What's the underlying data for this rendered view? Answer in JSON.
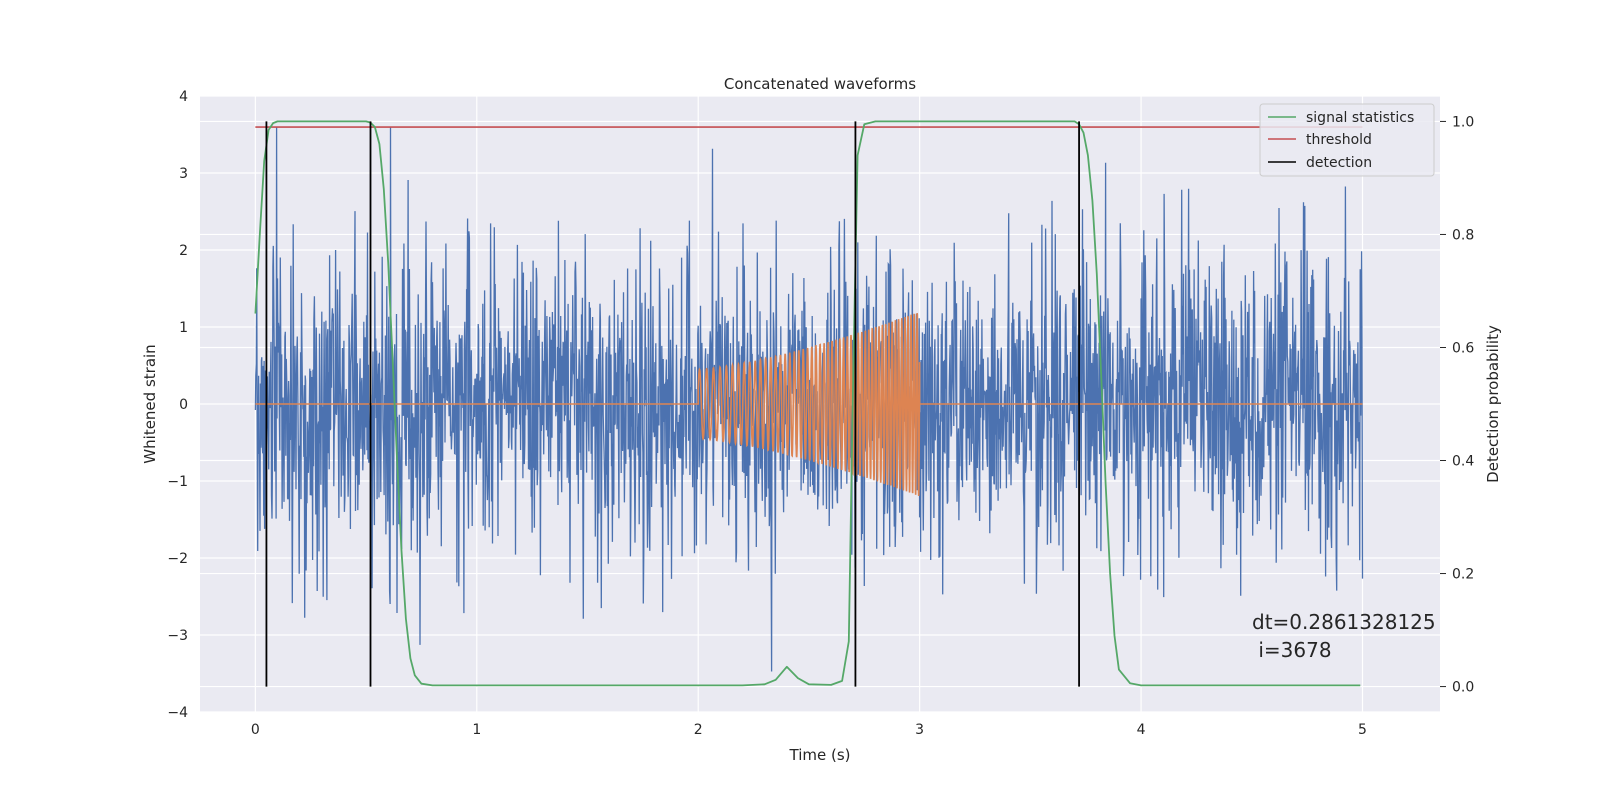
{
  "chart_data": {
    "type": "line",
    "title": "Concatenated waveforms",
    "xlabel": "Time (s)",
    "ylabel_left": "Whitened strain",
    "ylabel_right": "Detection probability",
    "xlim": [
      -0.25,
      5.35
    ],
    "ylim_left": [
      -4,
      4
    ],
    "ylim_right": [
      -0.045,
      1.045
    ],
    "x_ticks": [
      0,
      1,
      2,
      3,
      4,
      5
    ],
    "y_ticks_left": [
      -4,
      -3,
      -2,
      -1,
      0,
      1,
      2,
      3,
      4
    ],
    "y_ticks_right": [
      0.0,
      0.2,
      0.4,
      0.6,
      0.8,
      1.0
    ],
    "x_tick_labels": [
      "0",
      "1",
      "2",
      "3",
      "4",
      "5"
    ],
    "y_tick_labels_left": [
      "−4",
      "−3",
      "−2",
      "−1",
      "0",
      "1",
      "2",
      "3",
      "4"
    ],
    "y_tick_labels_right": [
      "0.0",
      "0.2",
      "0.4",
      "0.6",
      "0.8",
      "1.0"
    ],
    "grid": true,
    "legend_position": "top-right",
    "colors": {
      "strain": "#4c72b0",
      "template": "#dd8452",
      "signal_statistics": "#55a868",
      "threshold": "#c44e52",
      "detection": "#000000",
      "axes_bg": "#eaeaf2",
      "grid": "#ffffff"
    },
    "series": [
      {
        "name": "",
        "axis": "left",
        "kind": "noise",
        "x_range": [
          0,
          5
        ],
        "std": 0.75,
        "peak_range": [
          -3.7,
          3.6
        ]
      },
      {
        "name": "",
        "axis": "left",
        "kind": "chirp",
        "x_range": [
          0,
          5
        ],
        "chirp_start": 2.0,
        "chirp_end": 3.0,
        "amplitude_start": 0.45,
        "amplitude_end": 1.2
      },
      {
        "name": "signal statistics",
        "axis": "right",
        "x": [
          0,
          0.02,
          0.04,
          0.06,
          0.08,
          0.1,
          0.15,
          0.2,
          0.3,
          0.4,
          0.5,
          0.52,
          0.54,
          0.56,
          0.58,
          0.6,
          0.62,
          0.64,
          0.66,
          0.68,
          0.7,
          0.72,
          0.75,
          0.8,
          1.0,
          1.5,
          2.0,
          2.2,
          2.3,
          2.35,
          2.4,
          2.45,
          2.5,
          2.6,
          2.65,
          2.68,
          2.7,
          2.72,
          2.75,
          2.8,
          3.0,
          3.5,
          3.7,
          3.72,
          3.74,
          3.76,
          3.78,
          3.8,
          3.82,
          3.84,
          3.86,
          3.88,
          3.9,
          3.95,
          4.0,
          4.5,
          4.99
        ],
        "y": [
          0.66,
          0.8,
          0.93,
          0.985,
          0.997,
          1.0,
          1.0,
          1.0,
          1.0,
          1.0,
          1.0,
          0.998,
          0.99,
          0.96,
          0.88,
          0.75,
          0.58,
          0.4,
          0.24,
          0.12,
          0.05,
          0.02,
          0.005,
          0.002,
          0.002,
          0.002,
          0.002,
          0.002,
          0.004,
          0.012,
          0.035,
          0.015,
          0.004,
          0.003,
          0.01,
          0.08,
          0.55,
          0.94,
          0.995,
          1.0,
          1.0,
          1.0,
          1.0,
          0.995,
          0.98,
          0.94,
          0.86,
          0.73,
          0.55,
          0.36,
          0.2,
          0.09,
          0.03,
          0.006,
          0.002,
          0.002,
          0.002
        ]
      },
      {
        "name": "threshold",
        "axis": "right",
        "x": [
          0,
          5
        ],
        "y": [
          0.99,
          0.99
        ]
      },
      {
        "name": "detection",
        "axis": "right",
        "vlines": [
          0.05,
          0.52,
          2.71,
          3.72
        ],
        "ymin": 0.0,
        "ymax": 1.0
      }
    ],
    "annotation": {
      "line1": "dt=0.2861328125",
      "line2": " i=3678"
    }
  }
}
